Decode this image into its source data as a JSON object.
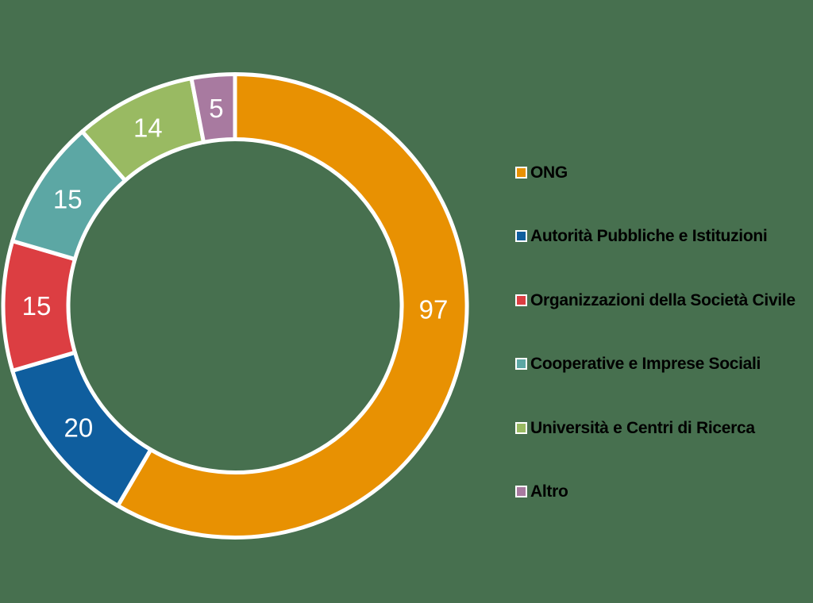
{
  "background_color": "#47704F",
  "chart_data": {
    "type": "pie",
    "subtype": "donut",
    "title": "",
    "total": 166,
    "direction": "clockwise",
    "start_angle_deg": 0,
    "legend_position": "right",
    "slice_border_color": "#FFFFFF",
    "value_label_color": "#FFFFFF",
    "legend_text_color": "#000000",
    "slices": [
      {
        "key": "ong",
        "label": "ONG",
        "value": 97,
        "color": "#E89102",
        "label_angle_deg": 91
      },
      {
        "key": "autorita-pubbliche-e-istituzioni",
        "label": "Autorità Pubbliche e Istituzioni",
        "value": 20,
        "color": "#0F5E9E",
        "label_angle_deg": null
      },
      {
        "key": "organizzazioni-della-societa-civile",
        "label": "Organizzazioni della Società Civile",
        "value": 15,
        "color": "#DC3E42",
        "label_angle_deg": null
      },
      {
        "key": "cooperative-e-imprese-sociali",
        "label": "Cooperative e Imprese Sociali",
        "value": 15,
        "color": "#5CA7A4",
        "label_angle_deg": null
      },
      {
        "key": "universita-e-centri-di-ricerca",
        "label": "Università e Centri di Ricerca",
        "value": 14,
        "color": "#99BA62",
        "label_angle_deg": null
      },
      {
        "key": "altro",
        "label": "Altro",
        "value": 5,
        "color": "#A87AA0",
        "label_angle_deg": null
      }
    ]
  }
}
